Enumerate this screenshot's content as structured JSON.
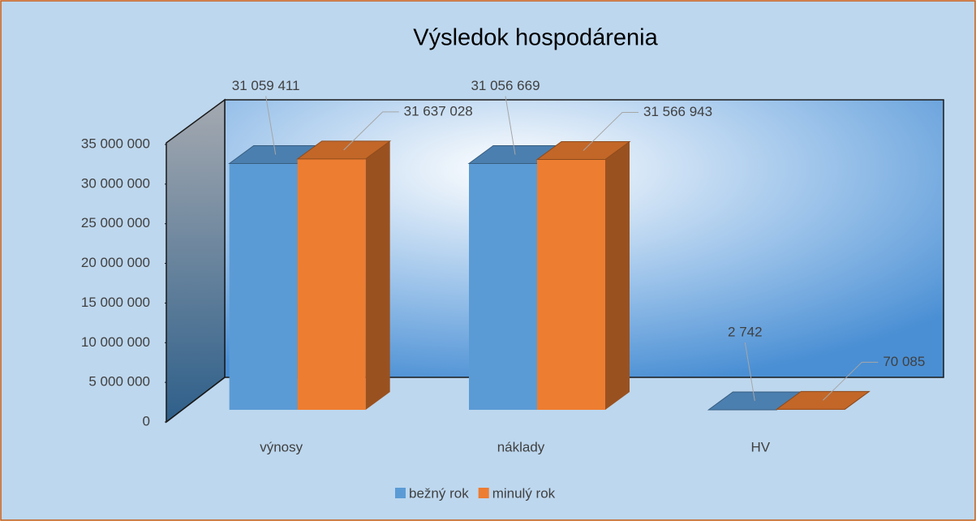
{
  "chart_data": {
    "type": "bar3d",
    "title": "Výsledok hospodárenia",
    "categories": [
      "výnosy",
      "náklady",
      "HV"
    ],
    "series": [
      {
        "name": "bežný rok",
        "color": "#5b9bd5",
        "values": [
          31059411,
          31056669,
          2742
        ],
        "value_labels": [
          "31 059 411",
          "31 056 669",
          "2 742"
        ]
      },
      {
        "name": "minulý rok",
        "color": "#ed7d31",
        "values": [
          31637028,
          31566943,
          70085
        ],
        "value_labels": [
          "31 637 028",
          "31 566 943",
          "70 085"
        ]
      }
    ],
    "ylim": [
      0,
      35000000
    ],
    "yticks": [
      {
        "value": 0,
        "label": "0"
      },
      {
        "value": 5000000,
        "label": "5 000 000"
      },
      {
        "value": 10000000,
        "label": "10 000 000"
      },
      {
        "value": 15000000,
        "label": "15 000 000"
      },
      {
        "value": 20000000,
        "label": "20 000 000"
      },
      {
        "value": 25000000,
        "label": "25 000 000"
      },
      {
        "value": 30000000,
        "label": "30 000 000"
      },
      {
        "value": 35000000,
        "label": "35 000 000"
      }
    ],
    "legend": "bottom"
  }
}
